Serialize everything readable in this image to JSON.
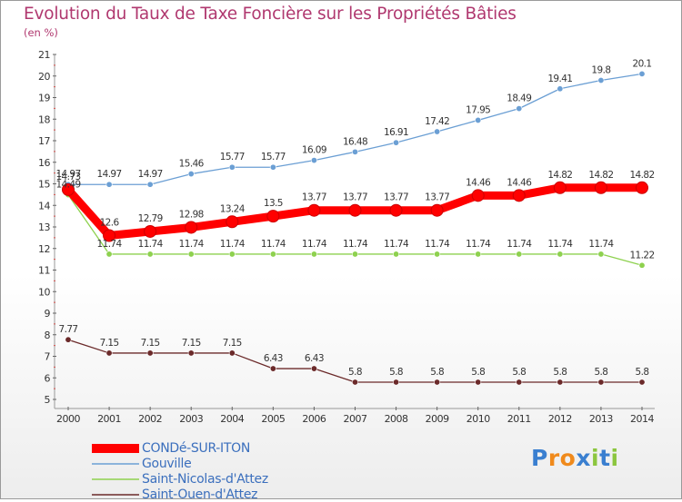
{
  "title": "Evolution du Taux de Taxe Foncière sur les Propriétés Bâties",
  "subtitle": "(en %)",
  "logo_text": "Proxiti",
  "chart_data": {
    "type": "line",
    "title": "Evolution du Taux de Taxe Foncière sur les Propriétés Bâties",
    "ylabel": "(en %)",
    "xlabel": "",
    "x": [
      "2000",
      "2001",
      "2002",
      "2003",
      "2004",
      "2005",
      "2006",
      "2007",
      "2008",
      "2009",
      "2010",
      "2011",
      "2012",
      "2013",
      "2014"
    ],
    "ylim": [
      5,
      21
    ],
    "yticks": [
      5,
      6,
      7,
      8,
      9,
      10,
      11,
      12,
      13,
      14,
      15,
      16,
      17,
      18,
      19,
      20,
      21
    ],
    "grid": false,
    "legend_position": "bottom-left",
    "series": [
      {
        "name": "CONDé-SUR-ITON",
        "color": "#ff0000",
        "values": [
          14.73,
          12.6,
          12.79,
          12.98,
          13.24,
          13.5,
          13.77,
          13.77,
          13.77,
          13.77,
          14.46,
          14.46,
          14.82,
          14.82,
          14.82
        ],
        "labels": [
          "14.73",
          "12.6",
          "12.79",
          "12.98",
          "13.24",
          "13.5",
          "13.77",
          "13.77",
          "13.77",
          "13.77",
          "14.46",
          "14.46",
          "14.82",
          "14.82",
          "14.82"
        ]
      },
      {
        "name": "Gouville",
        "color": "#6b9fd4",
        "values": [
          14.97,
          14.97,
          14.97,
          15.46,
          15.77,
          15.77,
          16.09,
          16.48,
          16.91,
          17.42,
          17.95,
          18.49,
          19.41,
          19.8,
          20.1
        ],
        "labels": [
          "14.97",
          "14.97",
          "14.97",
          "15.46",
          "15.77",
          "15.77",
          "16.09",
          "16.48",
          "16.91",
          "17.42",
          "17.95",
          "18.49",
          "19.41",
          "19.8",
          "20.1"
        ]
      },
      {
        "name": "Saint-Nicolas-d'Attez",
        "color": "#8ed14f",
        "values": [
          14.49,
          11.74,
          11.74,
          11.74,
          11.74,
          11.74,
          11.74,
          11.74,
          11.74,
          11.74,
          11.74,
          11.74,
          11.74,
          11.74,
          11.22
        ],
        "labels": [
          "14.49",
          "11.74",
          "11.74",
          "11.74",
          "11.74",
          "11.74",
          "11.74",
          "11.74",
          "11.74",
          "11.74",
          "11.74",
          "11.74",
          "11.74",
          "11.74",
          "11.22"
        ]
      },
      {
        "name": "Saint-Ouen-d'Attez",
        "color": "#6b2a2a",
        "values": [
          7.77,
          7.15,
          7.15,
          7.15,
          7.15,
          6.43,
          6.43,
          5.8,
          5.8,
          5.8,
          5.8,
          5.8,
          5.8,
          5.8,
          5.8
        ],
        "labels": [
          "7.77",
          "7.15",
          "7.15",
          "7.15",
          "7.15",
          "6.43",
          "6.43",
          "5.8",
          "5.8",
          "5.8",
          "5.8",
          "5.8",
          "5.8",
          "5.8",
          "5.8"
        ]
      }
    ]
  }
}
